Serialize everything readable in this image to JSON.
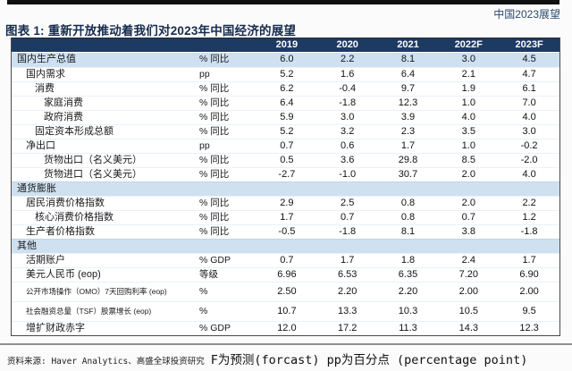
{
  "header": {
    "report_tag": "中国2023展望",
    "title": "图表 1: 重新开放推动着我们对2023年中国经济的展望"
  },
  "table": {
    "columns": [
      "2019",
      "2020",
      "2021",
      "2022F",
      "2023F"
    ],
    "rows": [
      {
        "label": "国内生产总值",
        "indent": 0,
        "unit": "% 同比",
        "values": [
          "6.0",
          "2.2",
          "8.1",
          "3.0",
          "4.5"
        ],
        "highlight": true
      },
      {
        "label": "国内需求",
        "indent": 1,
        "unit": "pp",
        "values": [
          "5.2",
          "1.6",
          "6.4",
          "2.1",
          "4.7"
        ]
      },
      {
        "label": "消费",
        "indent": 2,
        "unit": "% 同比",
        "values": [
          "6.2",
          "-0.4",
          "9.7",
          "1.9",
          "6.1"
        ]
      },
      {
        "label": "家庭消费",
        "indent": 3,
        "unit": "% 同比",
        "values": [
          "6.4",
          "-1.8",
          "12.3",
          "1.0",
          "7.0"
        ]
      },
      {
        "label": "政府消费",
        "indent": 3,
        "unit": "% 同比",
        "values": [
          "5.9",
          "3.0",
          "3.9",
          "4.0",
          "4.0"
        ]
      },
      {
        "label": "固定资本形成总额",
        "indent": 2,
        "unit": "% 同比",
        "values": [
          "5.2",
          "3.2",
          "2.3",
          "3.5",
          "3.0"
        ]
      },
      {
        "label": "净出口",
        "indent": 1,
        "unit": "pp",
        "values": [
          "0.7",
          "0.6",
          "1.7",
          "1.0",
          "-0.2"
        ]
      },
      {
        "label": "货物出口（名义美元）",
        "indent": 3,
        "unit": "% 同比",
        "values": [
          "0.5",
          "3.6",
          "29.8",
          "8.5",
          "-2.0"
        ]
      },
      {
        "label": "货物进口（名义美元）",
        "indent": 3,
        "unit": "% 同比",
        "values": [
          "-2.7",
          "-1.0",
          "30.7",
          "2.0",
          "4.0"
        ]
      },
      {
        "label": "通货膨胀",
        "indent": 0,
        "unit": "",
        "values": [
          "",
          "",
          "",
          "",
          ""
        ],
        "section": true
      },
      {
        "label": "居民消费价格指数",
        "indent": 1,
        "unit": "% 同比",
        "values": [
          "2.9",
          "2.5",
          "0.8",
          "2.0",
          "2.2"
        ]
      },
      {
        "label": "核心消费价格指数",
        "indent": 2,
        "unit": "% 同比",
        "values": [
          "1.7",
          "0.7",
          "0.8",
          "0.7",
          "1.2"
        ]
      },
      {
        "label": "生产者价格指数",
        "indent": 1,
        "unit": "% 同比",
        "values": [
          "-0.5",
          "-1.8",
          "8.1",
          "3.8",
          "-1.8"
        ]
      },
      {
        "label": "其他",
        "indent": 0,
        "unit": "",
        "values": [
          "",
          "",
          "",
          "",
          ""
        ],
        "section": true
      },
      {
        "label": "活期账户",
        "indent": 1,
        "unit": "% GDP",
        "values": [
          "0.7",
          "1.7",
          "1.8",
          "2.4",
          "1.7"
        ]
      },
      {
        "label": "美元人民币 (eop)",
        "indent": 1,
        "unit": "等级",
        "values": [
          "6.96",
          "6.53",
          "6.35",
          "7.20",
          "6.90"
        ]
      },
      {
        "label": "公开市场操作（OMO）7天回购利率 (eop)",
        "indent": 1,
        "unit": "%",
        "values": [
          "2.50",
          "2.20",
          "2.20",
          "2.00",
          "2.00"
        ],
        "small": true
      },
      {
        "label": "社会融资总量（TSF）股票增长 (eop)",
        "indent": 1,
        "unit": "%",
        "values": [
          "10.7",
          "13.3",
          "10.3",
          "10.5",
          "9.5"
        ],
        "small": true
      },
      {
        "label": "增扩财政赤字",
        "indent": 1,
        "unit": "% GDP",
        "values": [
          "12.0",
          "17.2",
          "11.3",
          "14.3",
          "12.3"
        ]
      }
    ]
  },
  "footer": {
    "source": "资料来源: Haver Analytics、高盛全球投资研究",
    "note": "F为预测(forcast) pp为百分点 (percentage point)"
  },
  "colors": {
    "header_bg": "#1d3a63",
    "band_bg": "#cfe1f1",
    "title_text": "#152c4e",
    "tag_text": "#2c4a6e",
    "top_bar": "#101010"
  }
}
